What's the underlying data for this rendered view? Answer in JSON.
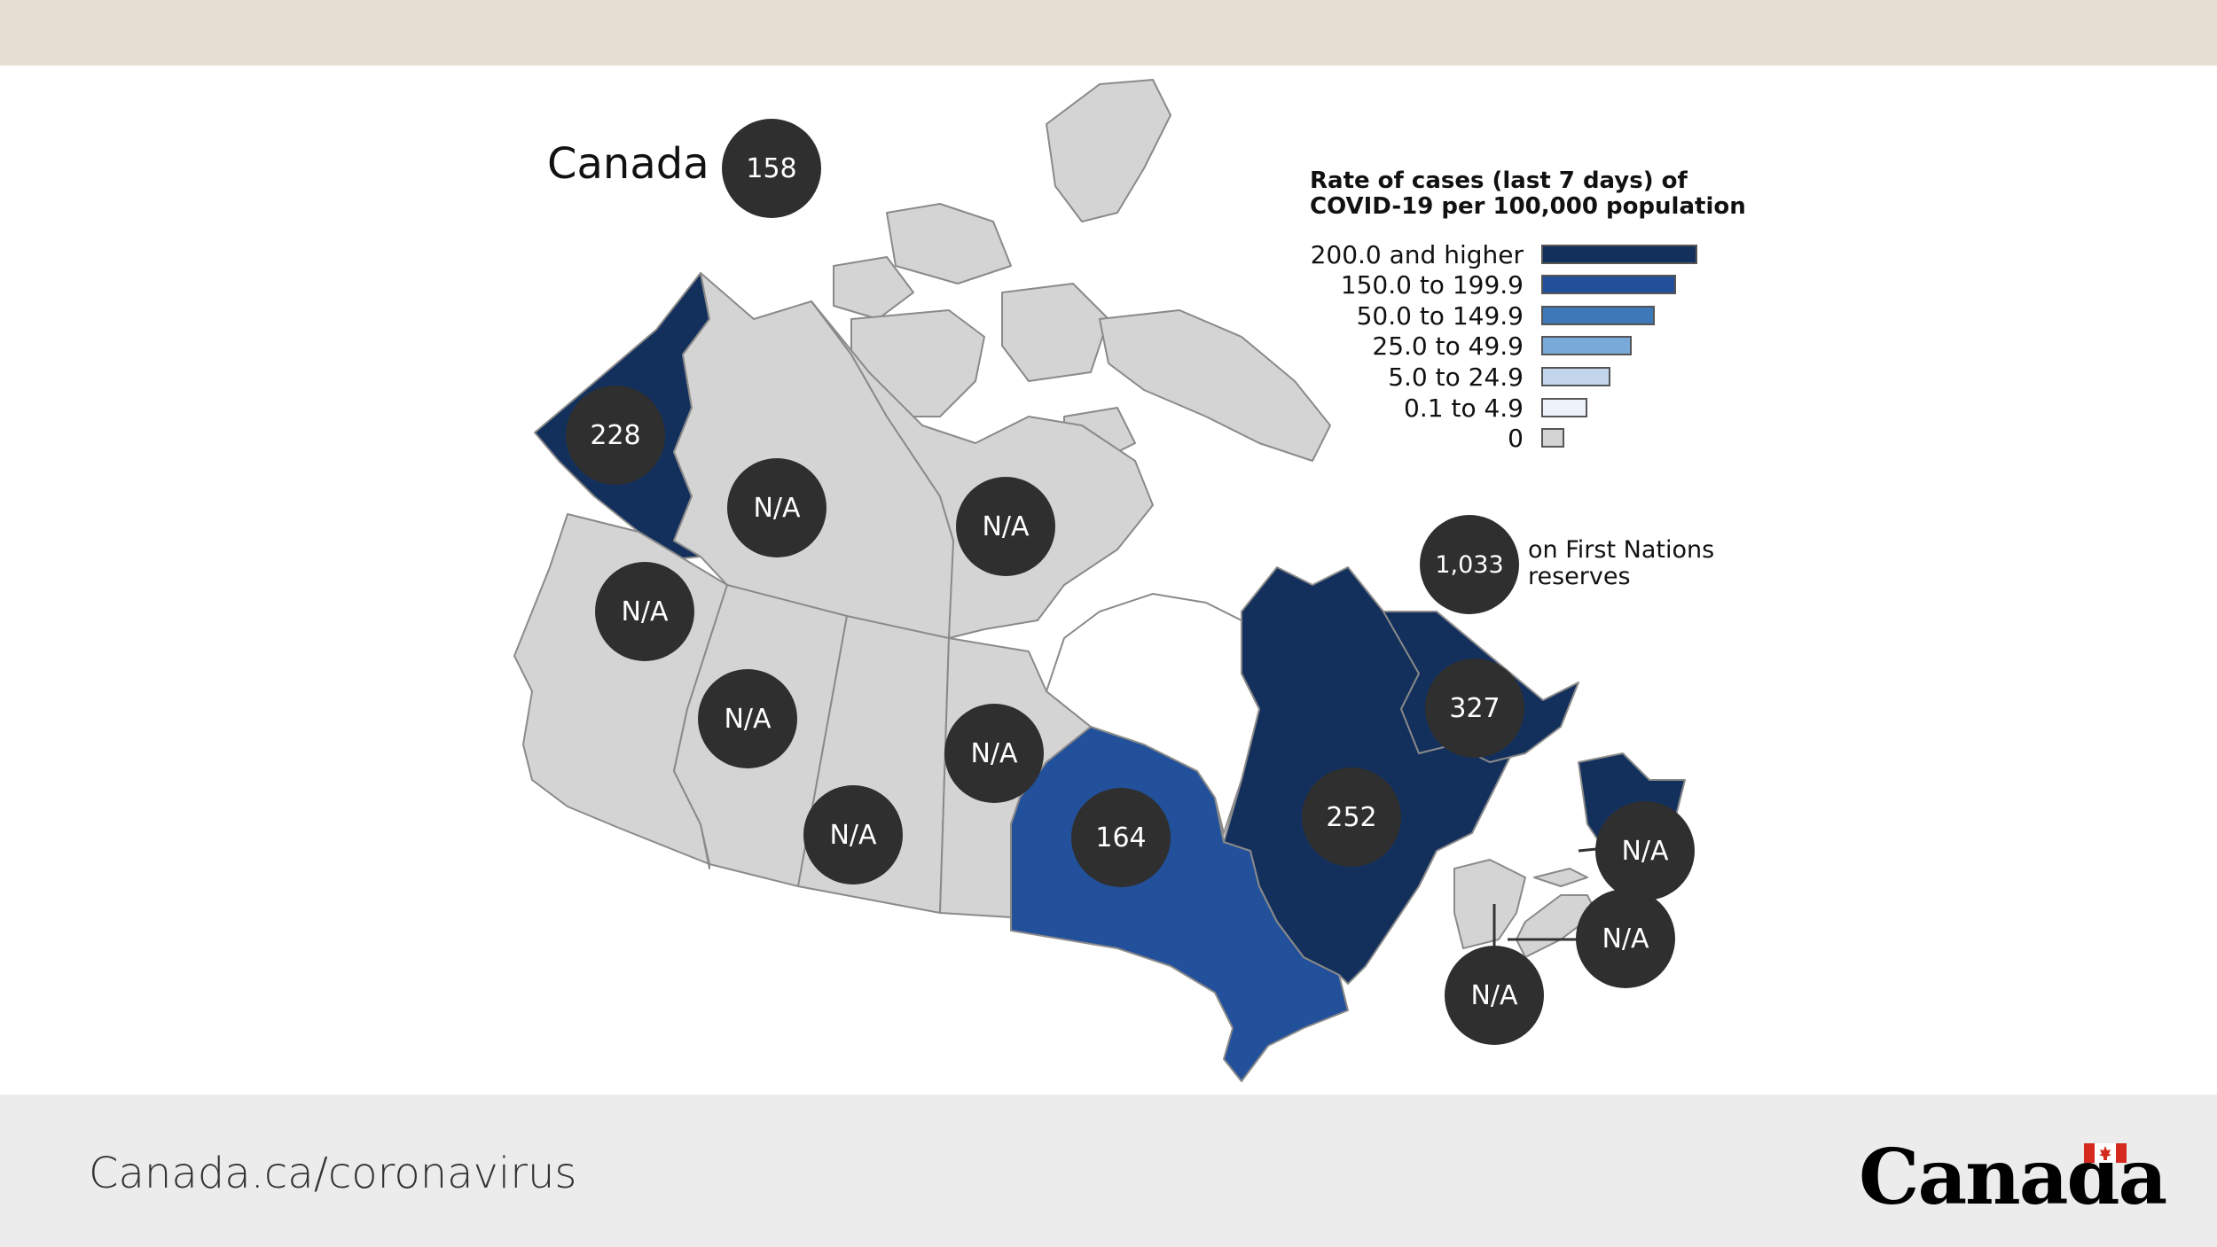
{
  "title": "Canada",
  "national_rate": "158",
  "legend": {
    "title_line1": "Rate of cases (last 7 days) of",
    "title_line2": "COVID-19 per 100,000 population",
    "items": [
      {
        "label": "200.0 and higher",
        "color": "#13305d"
      },
      {
        "label": "150.0 to 199.9",
        "color": "#22509a"
      },
      {
        "label": "50.0 to 149.9",
        "color": "#3d78b8"
      },
      {
        "label": "25.0 to 49.9",
        "color": "#79a9d8"
      },
      {
        "label": "5.0 to 24.9",
        "color": "#c3d5ea"
      },
      {
        "label": "0.1 to 4.9",
        "color": "#eef3fb"
      },
      {
        "label": "0",
        "color": "#d4d4d4"
      }
    ]
  },
  "first_nations": {
    "value": "1,033",
    "label_line1": "on First Nations",
    "label_line2": "reserves"
  },
  "regions": [
    {
      "name": "Yukon",
      "value": "228",
      "color": "#13305d"
    },
    {
      "name": "Northwest Territories",
      "value": "N/A",
      "color": "#d4d4d4"
    },
    {
      "name": "Nunavut",
      "value": "N/A",
      "color": "#d4d4d4"
    },
    {
      "name": "British Columbia",
      "value": "N/A",
      "color": "#d4d4d4"
    },
    {
      "name": "Alberta",
      "value": "N/A",
      "color": "#d4d4d4"
    },
    {
      "name": "Saskatchewan",
      "value": "N/A",
      "color": "#d4d4d4"
    },
    {
      "name": "Manitoba",
      "value": "N/A",
      "color": "#d4d4d4"
    },
    {
      "name": "Ontario",
      "value": "164",
      "color": "#22509a"
    },
    {
      "name": "Quebec",
      "value": "252",
      "color": "#13305d"
    },
    {
      "name": "Newfoundland and Labrador",
      "value": "327",
      "color": "#13305d"
    },
    {
      "name": "Prince Edward Island",
      "value": "N/A",
      "color": "#d4d4d4"
    },
    {
      "name": "Nova Scotia",
      "value": "N/A",
      "color": "#d4d4d4"
    },
    {
      "name": "New Brunswick",
      "value": "N/A",
      "color": "#d4d4d4"
    }
  ],
  "footer": {
    "url": "Canada.ca/coronavirus",
    "wordmark": "Canada"
  }
}
